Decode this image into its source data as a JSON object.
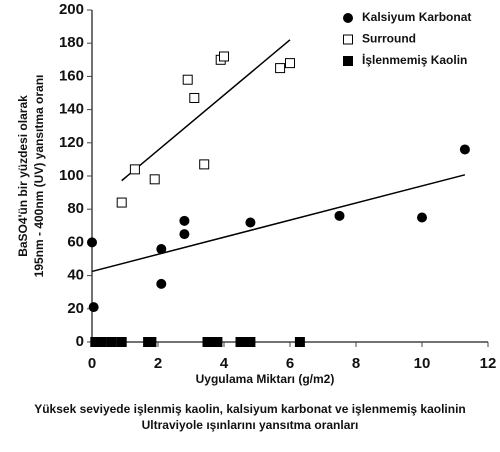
{
  "chart_data": {
    "type": "scatter",
    "y_label": [
      "BaSO4'ün bir yüzdesi olarak",
      "195nm - 400nm (UV) yansıtma oranı"
    ],
    "x_label": "Uygulama Miktarı (g/m2)",
    "caption": [
      "Yüksek seviyede işlenmiş kaolin, kalsiyum karbonat ve işlenmemiş kaolinin",
      "Ultraviyole ışınlarını yansıtma oranları"
    ],
    "xlim": [
      0,
      12
    ],
    "xticks": [
      0,
      2,
      4,
      6,
      8,
      10,
      12
    ],
    "ylim": [
      0,
      200
    ],
    "yticks": [
      0,
      20,
      40,
      60,
      80,
      100,
      120,
      140,
      160,
      180,
      200
    ],
    "grid": false,
    "legend": "top-right",
    "trendline": true,
    "series": [
      {
        "name": "Kalsiyum Karbonat",
        "color": "#000000",
        "marker": "circle",
        "x": [
          0,
          0.05,
          2.1,
          2.1,
          2.8,
          2.8,
          4.8,
          7.5,
          10,
          11.3
        ],
        "values": [
          60,
          21,
          56,
          35,
          73,
          65,
          72,
          76,
          75,
          116
        ]
      },
      {
        "name": "Surround",
        "color": "#000000",
        "marker": "open-square",
        "x": [
          0.9,
          1.3,
          1.9,
          2.9,
          3.1,
          3.4,
          3.9,
          4.0,
          5.7,
          6.0
        ],
        "values": [
          84,
          104,
          98,
          158,
          147,
          107,
          170,
          172,
          165,
          168
        ]
      },
      {
        "name": "İşlenmemiş Kaolin",
        "color": "#000000",
        "marker": "square",
        "x": [
          0.1,
          0.3,
          0.6,
          0.9,
          1.7,
          1.8,
          3.5,
          3.8,
          4.5,
          4.8,
          6.3
        ],
        "values": [
          0,
          0,
          0,
          0,
          0,
          0,
          0,
          0,
          0,
          0,
          0
        ]
      }
    ]
  }
}
